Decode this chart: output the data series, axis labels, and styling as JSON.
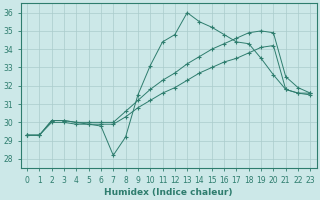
{
  "xlabel": "Humidex (Indice chaleur)",
  "xlim": [
    -0.5,
    23.5
  ],
  "ylim": [
    27.5,
    36.5
  ],
  "yticks": [
    28,
    29,
    30,
    31,
    32,
    33,
    34,
    35,
    36
  ],
  "xticks": [
    0,
    1,
    2,
    3,
    4,
    5,
    6,
    7,
    8,
    9,
    10,
    11,
    12,
    13,
    14,
    15,
    16,
    17,
    18,
    19,
    20,
    21,
    22,
    23
  ],
  "bg_color": "#cce8e8",
  "line_color": "#2e7d6e",
  "grid_color": "#aacccc",
  "s1": [
    29.3,
    29.3,
    30.1,
    30.1,
    30.0,
    29.9,
    29.8,
    28.2,
    29.2,
    31.5,
    33.1,
    34.4,
    34.8,
    36.0,
    35.5,
    35.2,
    34.8,
    34.4,
    34.3,
    33.5,
    32.6,
    31.8,
    31.6,
    31.6
  ],
  "s2": [
    29.3,
    29.3,
    30.1,
    30.1,
    30.0,
    30.0,
    30.0,
    30.0,
    30.6,
    31.2,
    31.8,
    32.3,
    32.7,
    33.2,
    33.6,
    34.0,
    34.3,
    34.6,
    34.9,
    35.0,
    34.9,
    32.5,
    31.9,
    31.6
  ],
  "s3": [
    29.3,
    29.3,
    30.0,
    30.0,
    29.9,
    29.9,
    29.9,
    29.9,
    30.3,
    30.8,
    31.2,
    31.6,
    31.9,
    32.3,
    32.7,
    33.0,
    33.3,
    33.5,
    33.8,
    34.1,
    34.2,
    31.8,
    31.6,
    31.5
  ]
}
